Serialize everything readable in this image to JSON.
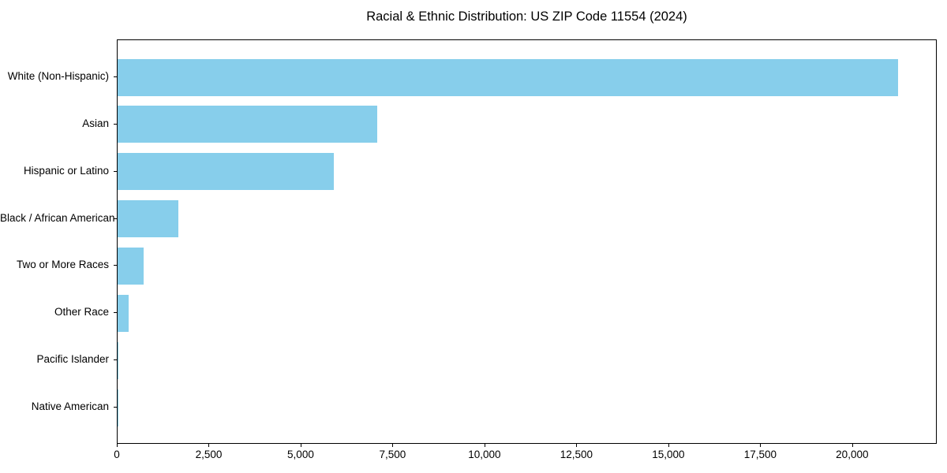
{
  "chart_data": {
    "type": "bar",
    "orientation": "horizontal",
    "title": "Racial & Ethnic Distribution: US ZIP Code 11554 (2024)",
    "categories": [
      "White (Non-Hispanic)",
      "Asian",
      "Hispanic or Latino",
      "Black / African American",
      "Two or More Races",
      "Other Race",
      "Pacific Islander",
      "Native American"
    ],
    "values": [
      21220,
      7070,
      5890,
      1650,
      710,
      300,
      20,
      15
    ],
    "xlabel": "",
    "ylabel": "",
    "xlim": [
      0,
      22300
    ],
    "x_ticks": [
      {
        "value": 0,
        "label": "0"
      },
      {
        "value": 2500,
        "label": "2,500"
      },
      {
        "value": 5000,
        "label": "5,000"
      },
      {
        "value": 7500,
        "label": "7,500"
      },
      {
        "value": 10000,
        "label": "10,000"
      },
      {
        "value": 12500,
        "label": "12,500"
      },
      {
        "value": 15000,
        "label": "15,000"
      },
      {
        "value": 17500,
        "label": "17,500"
      },
      {
        "value": 20000,
        "label": "20,000"
      }
    ],
    "grid": false,
    "legend_position": "none",
    "bar_color": "#87CEEB",
    "axis_color": "#000000",
    "text_color": "#000000",
    "background_color": "#FFFFFF"
  }
}
